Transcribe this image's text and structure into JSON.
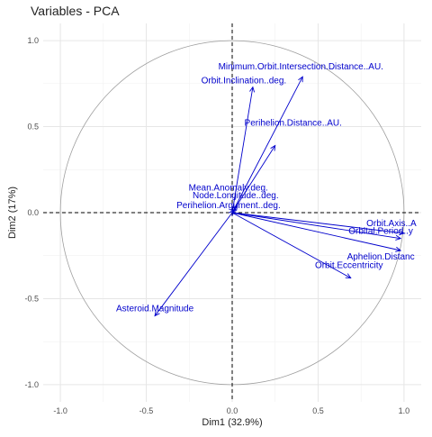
{
  "chart_data": {
    "type": "scatter",
    "subtype": "pca-correlation-circle",
    "title": "Variables - PCA",
    "xlabel": "Dim1 (32.9%)",
    "ylabel": "Dim2 (17%)",
    "xlim": [
      -1.1,
      1.1
    ],
    "ylim": [
      -1.1,
      1.1
    ],
    "x_ticks": [
      -1.0,
      -0.5,
      0.0,
      0.5,
      1.0
    ],
    "x_tick_labels": [
      "-1.0",
      "-0.5",
      "0.0",
      "0.5",
      "1.0"
    ],
    "y_ticks": [
      -1.0,
      -0.5,
      0.0,
      0.5,
      1.0
    ],
    "y_tick_labels": [
      "-1.0",
      "-0.5",
      "0.0",
      "0.5",
      "1.0"
    ],
    "grid": true,
    "unit_circle": true,
    "reference_lines": "dashed at x=0 and y=0",
    "arrow_color": "#0000cc",
    "label_color": "#0000cc",
    "circle_color": "#9e9e9e",
    "variables": [
      {
        "name": "Minimum.Orbit.Intersection.Distance..AU.",
        "x": 0.41,
        "y": 0.79
      },
      {
        "name": "Orbit.Inclination..deg.",
        "x": 0.12,
        "y": 0.73
      },
      {
        "name": "Perihelion.Distance..AU.",
        "x": 0.25,
        "y": 0.39
      },
      {
        "name": "Mean.Anomaly.deg.",
        "x": 0.03,
        "y": 0.04
      },
      {
        "name": "Node.Longitude..deg.",
        "x": 0.02,
        "y": 0.02
      },
      {
        "name": "Perihelion.Argument..deg.",
        "x": 0.01,
        "y": 0.01
      },
      {
        "name": "Orbit.Axis..A",
        "x": 1.0,
        "y": -0.12
      },
      {
        "name": "Orbital.Period..y",
        "x": 0.98,
        "y": -0.15
      },
      {
        "name": "Aphelion.Distanc",
        "x": 0.98,
        "y": -0.22
      },
      {
        "name": "Orbit.Eccentricity",
        "x": 0.69,
        "y": -0.38
      },
      {
        "name": "Asteroid.Magnitude",
        "x": -0.45,
        "y": -0.6
      }
    ]
  }
}
